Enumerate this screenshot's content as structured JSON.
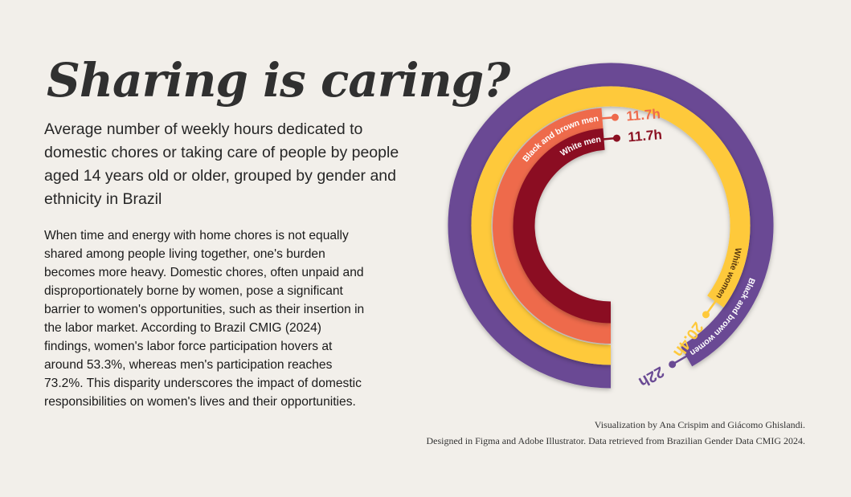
{
  "header": {
    "title": "Sharing is caring?",
    "subtitle": "Average number of weekly hours dedicated to domestic chores or taking care of people by people aged 14 years old or older, grouped by gender and ethnicity in Brazil"
  },
  "body": {
    "paragraph": "When time and energy with home chores is not equally shared among people living together, one's burden becomes more heavy. Domestic chores, often unpaid and disproportionately borne by women, pose a significant barrier to women's opportunities, such as their insertion in the labor market. According to Brazil CMIG (2024) findings, women's labor force participation hovers at around 53.3%, whereas men's participation reaches 73.2%. This disparity underscores the impact of domestic responsibilities on women's lives and their opportunities."
  },
  "footer": {
    "credit_line1": "Visualization by Ana Crispim and Giácomo Ghislandi.",
    "credit_line2": "Designed in Figma and Adobe Illustrator. Data retrieved from Brazilian Gender Data CMIG 2024."
  },
  "chart_data": {
    "type": "radial-bar",
    "unit": "h",
    "series": [
      {
        "name": "Black and brown women",
        "value": 22,
        "value_label": "22h",
        "color": "#6a4a94"
      },
      {
        "name": "White women",
        "value": 20.4,
        "value_label": "20.4h",
        "color": "#fec93b"
      },
      {
        "name": "Black and brown men",
        "value": 11.7,
        "value_label": "11.7h",
        "color": "#ee6a4c"
      },
      {
        "name": "White men",
        "value": 11.7,
        "value_label": "11.7h",
        "color": "#8b1022"
      }
    ]
  }
}
